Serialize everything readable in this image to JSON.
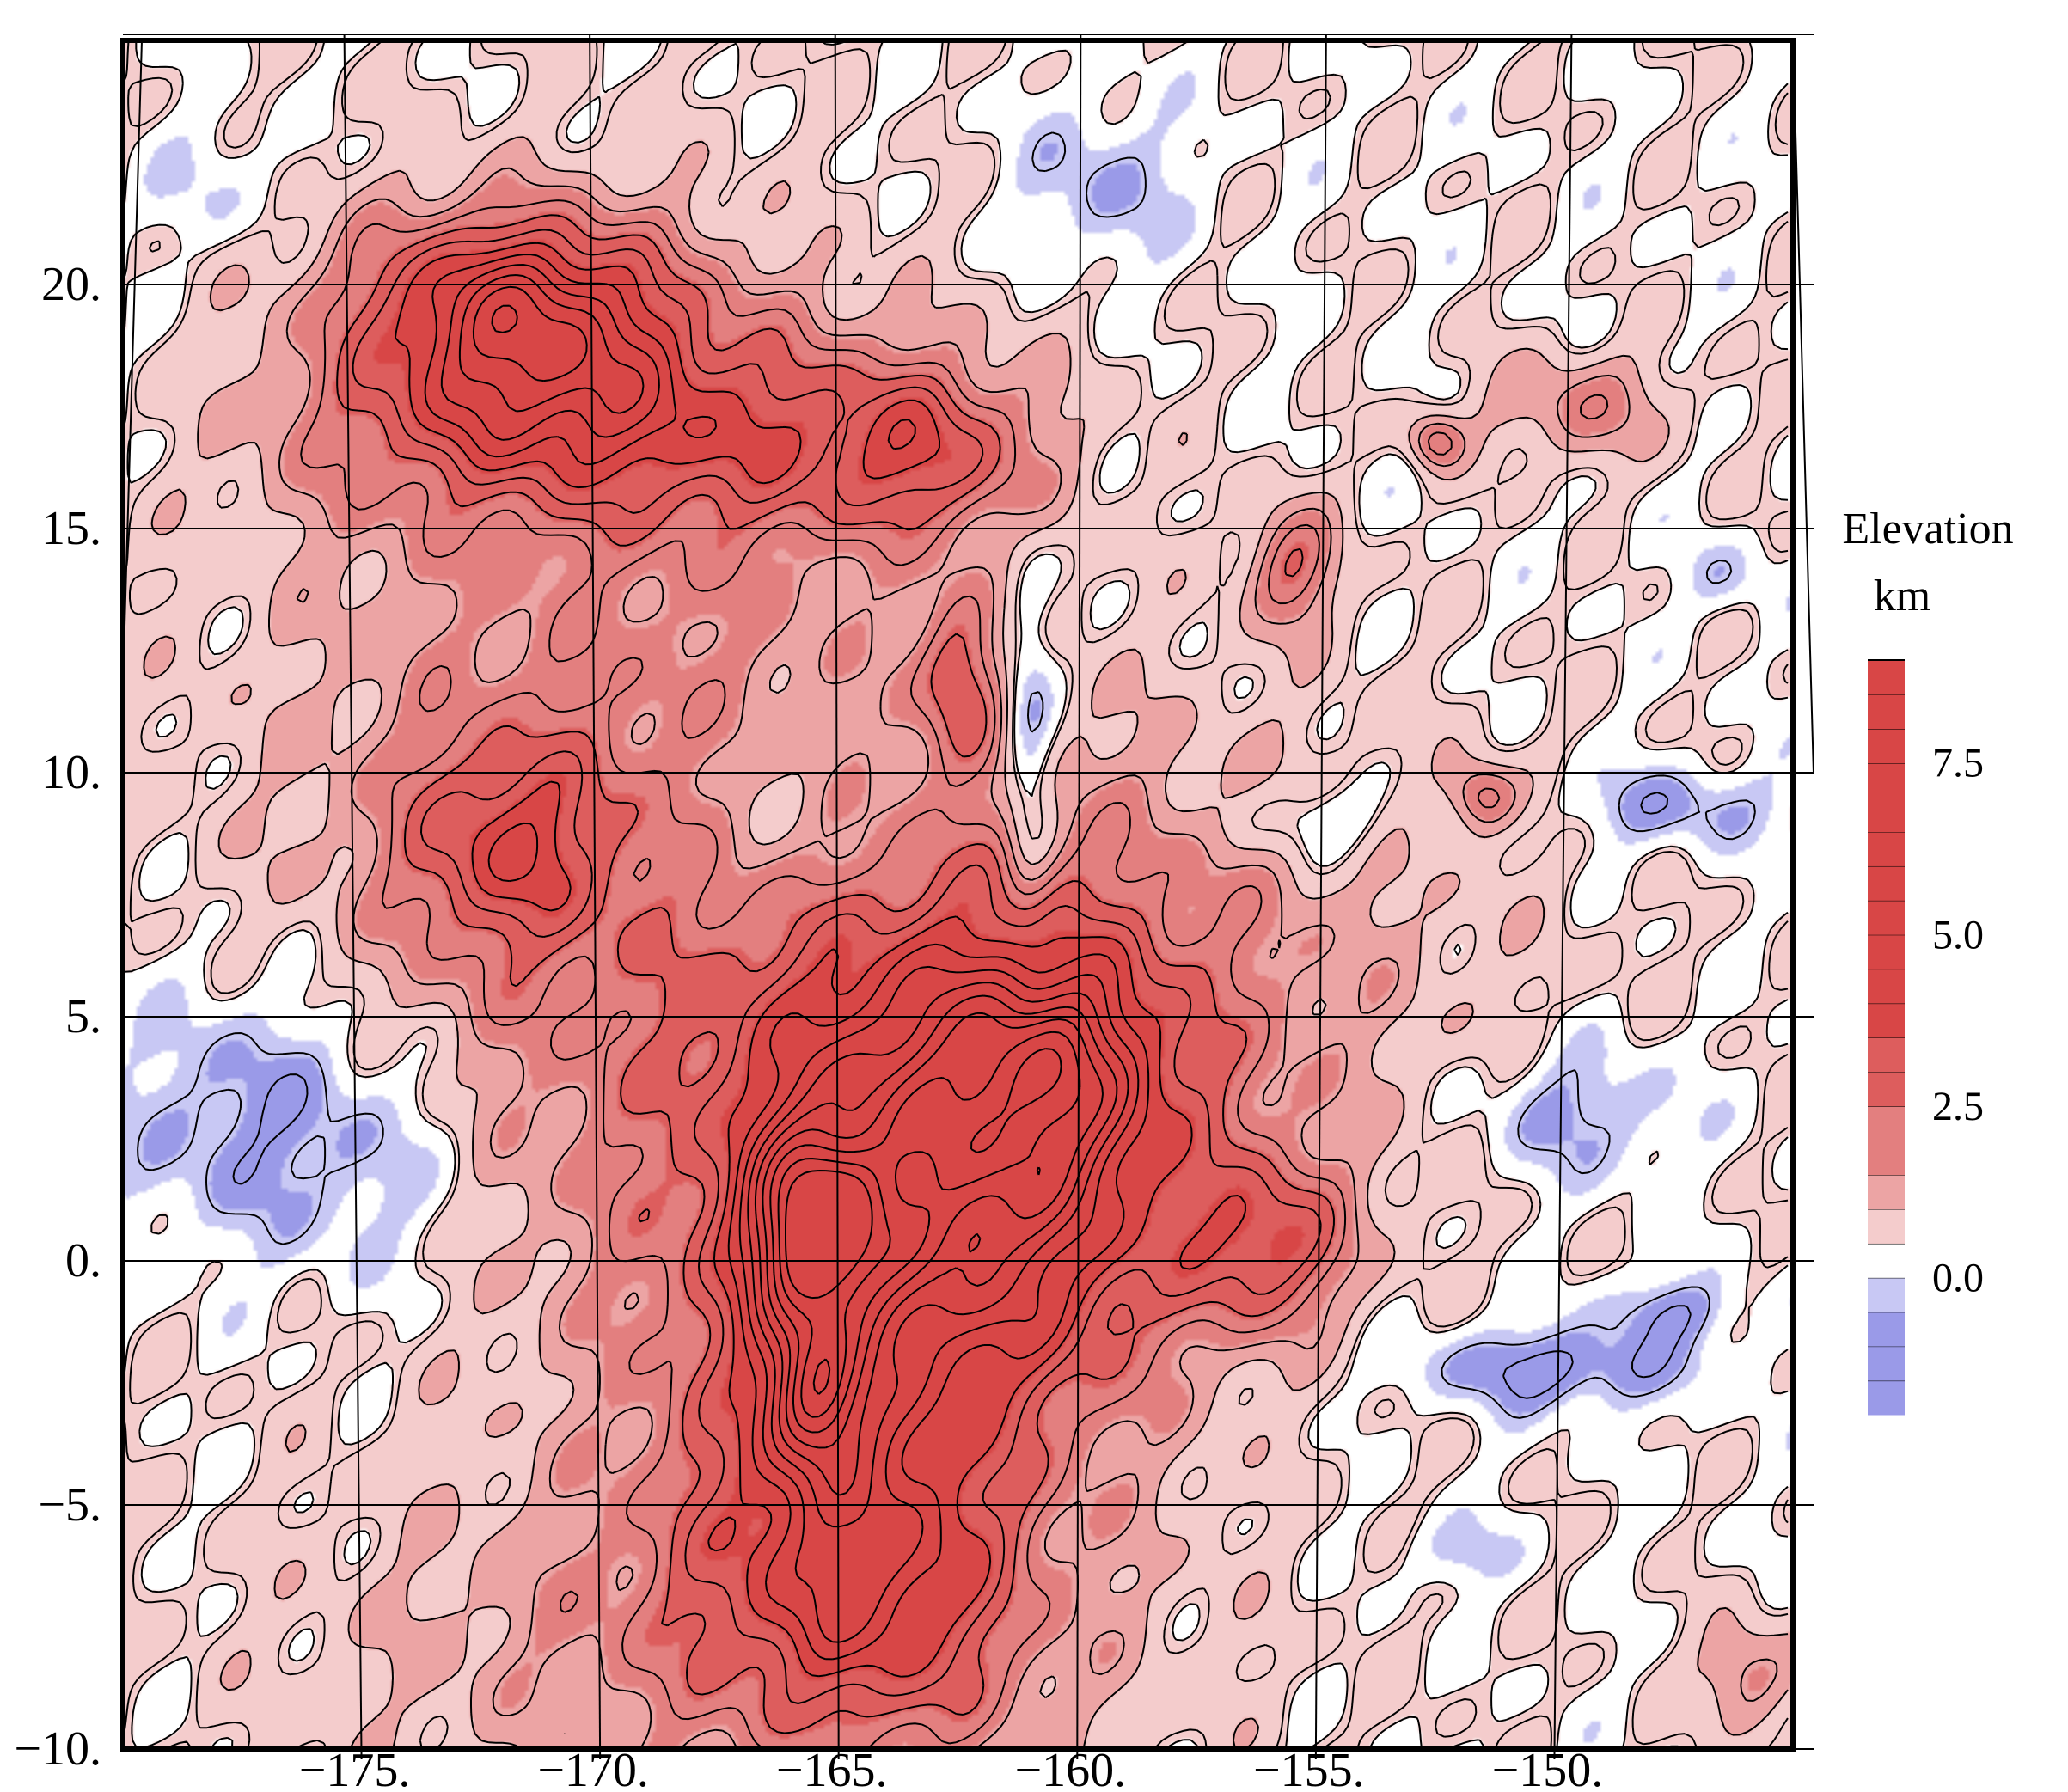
{
  "map": {
    "lon_range": [
      -180,
      -145
    ],
    "lat_range": [
      -10,
      25
    ],
    "lon_ticks": [
      {
        "value": -175,
        "label": "−175."
      },
      {
        "value": -170,
        "label": "−170."
      },
      {
        "value": -165,
        "label": "−165."
      },
      {
        "value": -160,
        "label": "−160."
      },
      {
        "value": -155,
        "label": "−155."
      },
      {
        "value": -150,
        "label": "−150."
      }
    ],
    "lat_ticks": [
      {
        "value": 20,
        "label": "20."
      },
      {
        "value": 15,
        "label": "15."
      },
      {
        "value": 10,
        "label": "10."
      },
      {
        "value": 5,
        "label": "5."
      },
      {
        "value": 0,
        "label": "0."
      },
      {
        "value": -5,
        "label": "−5."
      },
      {
        "value": -10,
        "label": "−10."
      }
    ],
    "colors": {
      "low_strong": "#9a9ae8",
      "low_light": "#c8c8f4",
      "zero": "#ffffff",
      "pos_1": "#f4cccc",
      "pos_2": "#eca4a4",
      "pos_3": "#e37f7f",
      "pos_4": "#dd5d5d",
      "pos_5": "#d84646"
    },
    "features": [
      {
        "lon": -162.5,
        "lat": 1.5,
        "amp": 5.0,
        "sx": 3.2,
        "sy": 3.5
      },
      {
        "lon": -165.5,
        "lat": 0.5,
        "amp": 4.5,
        "sx": 0.9,
        "sy": 1.4
      },
      {
        "lon": -165.5,
        "lat": -2.8,
        "amp": 3.2,
        "sx": 0.7,
        "sy": 1.0
      },
      {
        "lon": -156.0,
        "lat": 0.3,
        "amp": 2.5,
        "sx": 1.2,
        "sy": 1.2
      },
      {
        "lon": -160.5,
        "lat": 4.0,
        "amp": 2.0,
        "sx": 1.5,
        "sy": 1.5
      },
      {
        "lon": -164.0,
        "lat": -6.5,
        "amp": 2.2,
        "sx": 2.0,
        "sy": 2.2
      },
      {
        "lon": -166.0,
        "lat": -4.5,
        "amp": 1.6,
        "sx": 2.5,
        "sy": 3.0
      },
      {
        "lon": -171.5,
        "lat": 18.5,
        "amp": 3.2,
        "sx": 2.2,
        "sy": 1.6
      },
      {
        "lon": -172.0,
        "lat": 20.0,
        "amp": 2.0,
        "sx": 2.5,
        "sy": 1.2
      },
      {
        "lon": -167.0,
        "lat": 17.0,
        "amp": 2.2,
        "sx": 3.5,
        "sy": 1.5
      },
      {
        "lon": -162.5,
        "lat": 12.0,
        "amp": 2.0,
        "sx": 0.6,
        "sy": 1.2
      },
      {
        "lon": -163.0,
        "lat": 16.5,
        "amp": 1.8,
        "sx": 1.5,
        "sy": 1.2
      },
      {
        "lon": -172.0,
        "lat": 8.5,
        "amp": 2.2,
        "sx": 1.5,
        "sy": 1.5
      },
      {
        "lon": -170.0,
        "lat": 12.0,
        "amp": 1.2,
        "sx": 5.0,
        "sy": 6.0
      },
      {
        "lon": -155.5,
        "lat": 14.2,
        "amp": 2.0,
        "sx": 0.7,
        "sy": 0.9
      },
      {
        "lon": -152.5,
        "lat": 16.8,
        "amp": 1.8,
        "sx": 0.4,
        "sy": 0.4
      },
      {
        "lon": -149.5,
        "lat": 17.5,
        "amp": 1.4,
        "sx": 1.4,
        "sy": 0.8
      },
      {
        "lon": -151.5,
        "lat": 9.5,
        "amp": 1.8,
        "sx": 0.5,
        "sy": 0.5
      },
      {
        "lon": -146.0,
        "lat": -8.5,
        "amp": 1.6,
        "sx": 0.7,
        "sy": 0.8
      },
      {
        "lon": -168.5,
        "lat": 4.0,
        "amp": 0.9,
        "sx": 5.0,
        "sy": 5.0
      },
      {
        "lon": -158.5,
        "lat": 6.0,
        "amp": 1.2,
        "sx": 5.0,
        "sy": 3.5
      },
      {
        "lon": -167.0,
        "lat": -8.0,
        "amp": 1.2,
        "sx": 6.0,
        "sy": 2.5
      },
      {
        "lon": -161.0,
        "lat": 10.5,
        "amp": -1.6,
        "sx": 0.4,
        "sy": 2.5
      },
      {
        "lon": -166.0,
        "lat": 9.0,
        "amp": -1.0,
        "sx": 1.6,
        "sy": 1.5
      },
      {
        "lon": -177.5,
        "lat": 3.0,
        "amp": -1.4,
        "sx": 1.8,
        "sy": 2.0
      },
      {
        "lon": -174.5,
        "lat": 2.0,
        "amp": -1.0,
        "sx": 1.5,
        "sy": 2.0
      },
      {
        "lon": -150.0,
        "lat": -2.2,
        "amp": -1.6,
        "sx": 2.0,
        "sy": 0.6
      },
      {
        "lon": -147.5,
        "lat": -1.0,
        "amp": -1.2,
        "sx": 1.0,
        "sy": 0.5
      },
      {
        "lon": -149.5,
        "lat": 3.0,
        "amp": -1.2,
        "sx": 1.5,
        "sy": 1.0
      },
      {
        "lon": -147.5,
        "lat": 9.3,
        "amp": -1.2,
        "sx": 1.5,
        "sy": 0.6
      },
      {
        "lon": -155.0,
        "lat": 9.0,
        "amp": -1.0,
        "sx": 1.2,
        "sy": 0.6
      },
      {
        "lon": -159.5,
        "lat": 22.0,
        "amp": -1.0,
        "sx": 1.2,
        "sy": 1.2
      },
      {
        "lon": -152.0,
        "lat": -6.0,
        "amp": -0.8,
        "sx": 0.8,
        "sy": 0.5
      },
      {
        "lon": -146.5,
        "lat": 14.0,
        "amp": -0.8,
        "sx": 0.6,
        "sy": 0.5
      },
      {
        "lon": -175.0,
        "lat": 17.0,
        "amp": 0.8,
        "sx": 2.0,
        "sy": 1.5
      },
      {
        "lon": -178.0,
        "lat": 22.0,
        "amp": -0.6,
        "sx": 1.0,
        "sy": 1.0
      }
    ]
  },
  "legend": {
    "title_line1": "Elevation",
    "title_line2": "km",
    "labels": [
      {
        "value": 7.5,
        "label": "7.5"
      },
      {
        "value": 5.0,
        "label": "5.0"
      },
      {
        "value": 2.5,
        "label": "2.5"
      },
      {
        "value": 0.0,
        "label": "0.0"
      }
    ],
    "range": [
      -2.0,
      9.0
    ],
    "step": 0.5
  }
}
